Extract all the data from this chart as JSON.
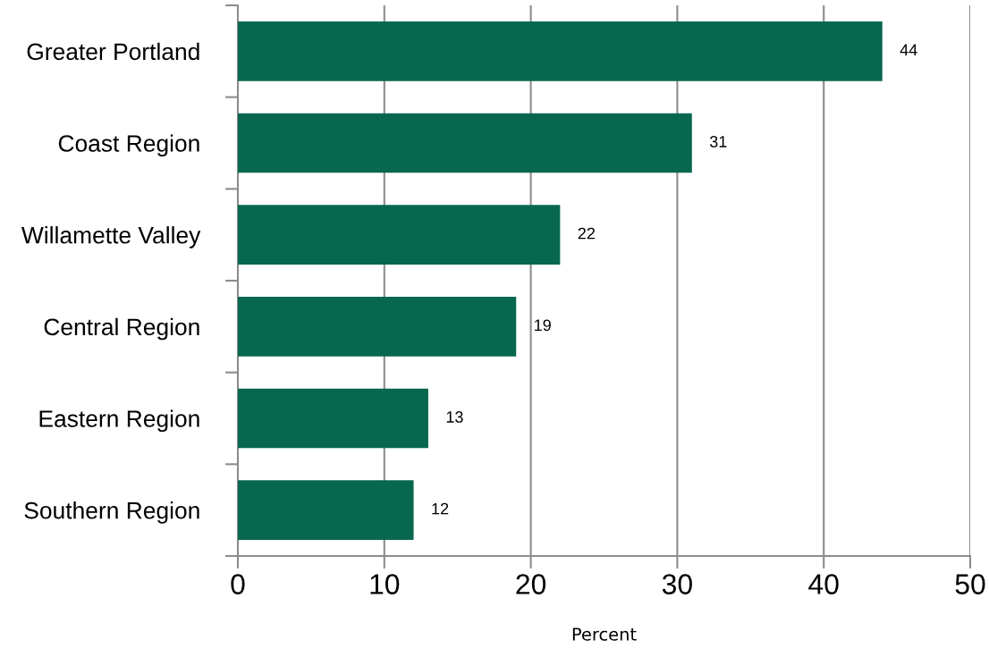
{
  "chart_data": {
    "type": "bar",
    "orientation": "horizontal",
    "categories": [
      "Greater Portland",
      "Coast Region",
      "Willamette Valley",
      "Central Region",
      "Eastern Region",
      "Southern Region"
    ],
    "values": [
      44,
      31,
      22,
      19,
      13,
      12
    ],
    "color": "#08684f",
    "xlabel": "Percent",
    "xlim": [
      0,
      50
    ],
    "xticks": [
      0,
      10,
      20,
      30,
      40,
      50
    ],
    "grid": "x",
    "data_labels": true
  }
}
